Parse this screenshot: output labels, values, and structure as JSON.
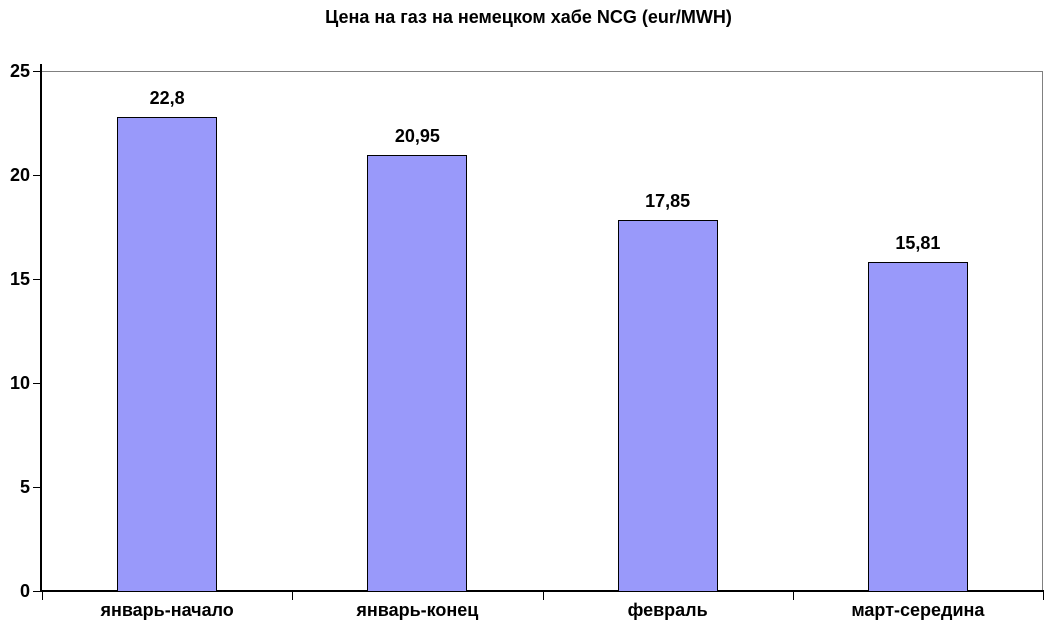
{
  "chart_data": {
    "type": "bar",
    "title": "Цена на газ на немецком хабе NCG (eur/MWH)",
    "categories": [
      "январь-начало",
      "январь-конец",
      "февраль",
      "март-середина"
    ],
    "values": [
      22.8,
      20.95,
      17.85,
      15.81
    ],
    "value_labels": [
      "22,8",
      "20,95",
      "17,85",
      "15,81"
    ],
    "xlabel": "",
    "ylabel": "",
    "ylim": [
      0,
      25
    ],
    "yticks": [
      0,
      5,
      10,
      15,
      20,
      25
    ],
    "grid": false,
    "legend_position": "none",
    "bar_color": "#9999FA",
    "bar_border_color": "#000000",
    "axis_color": "#000000",
    "plot_border_color": "#808080",
    "background_color": "#FFFFFF"
  }
}
